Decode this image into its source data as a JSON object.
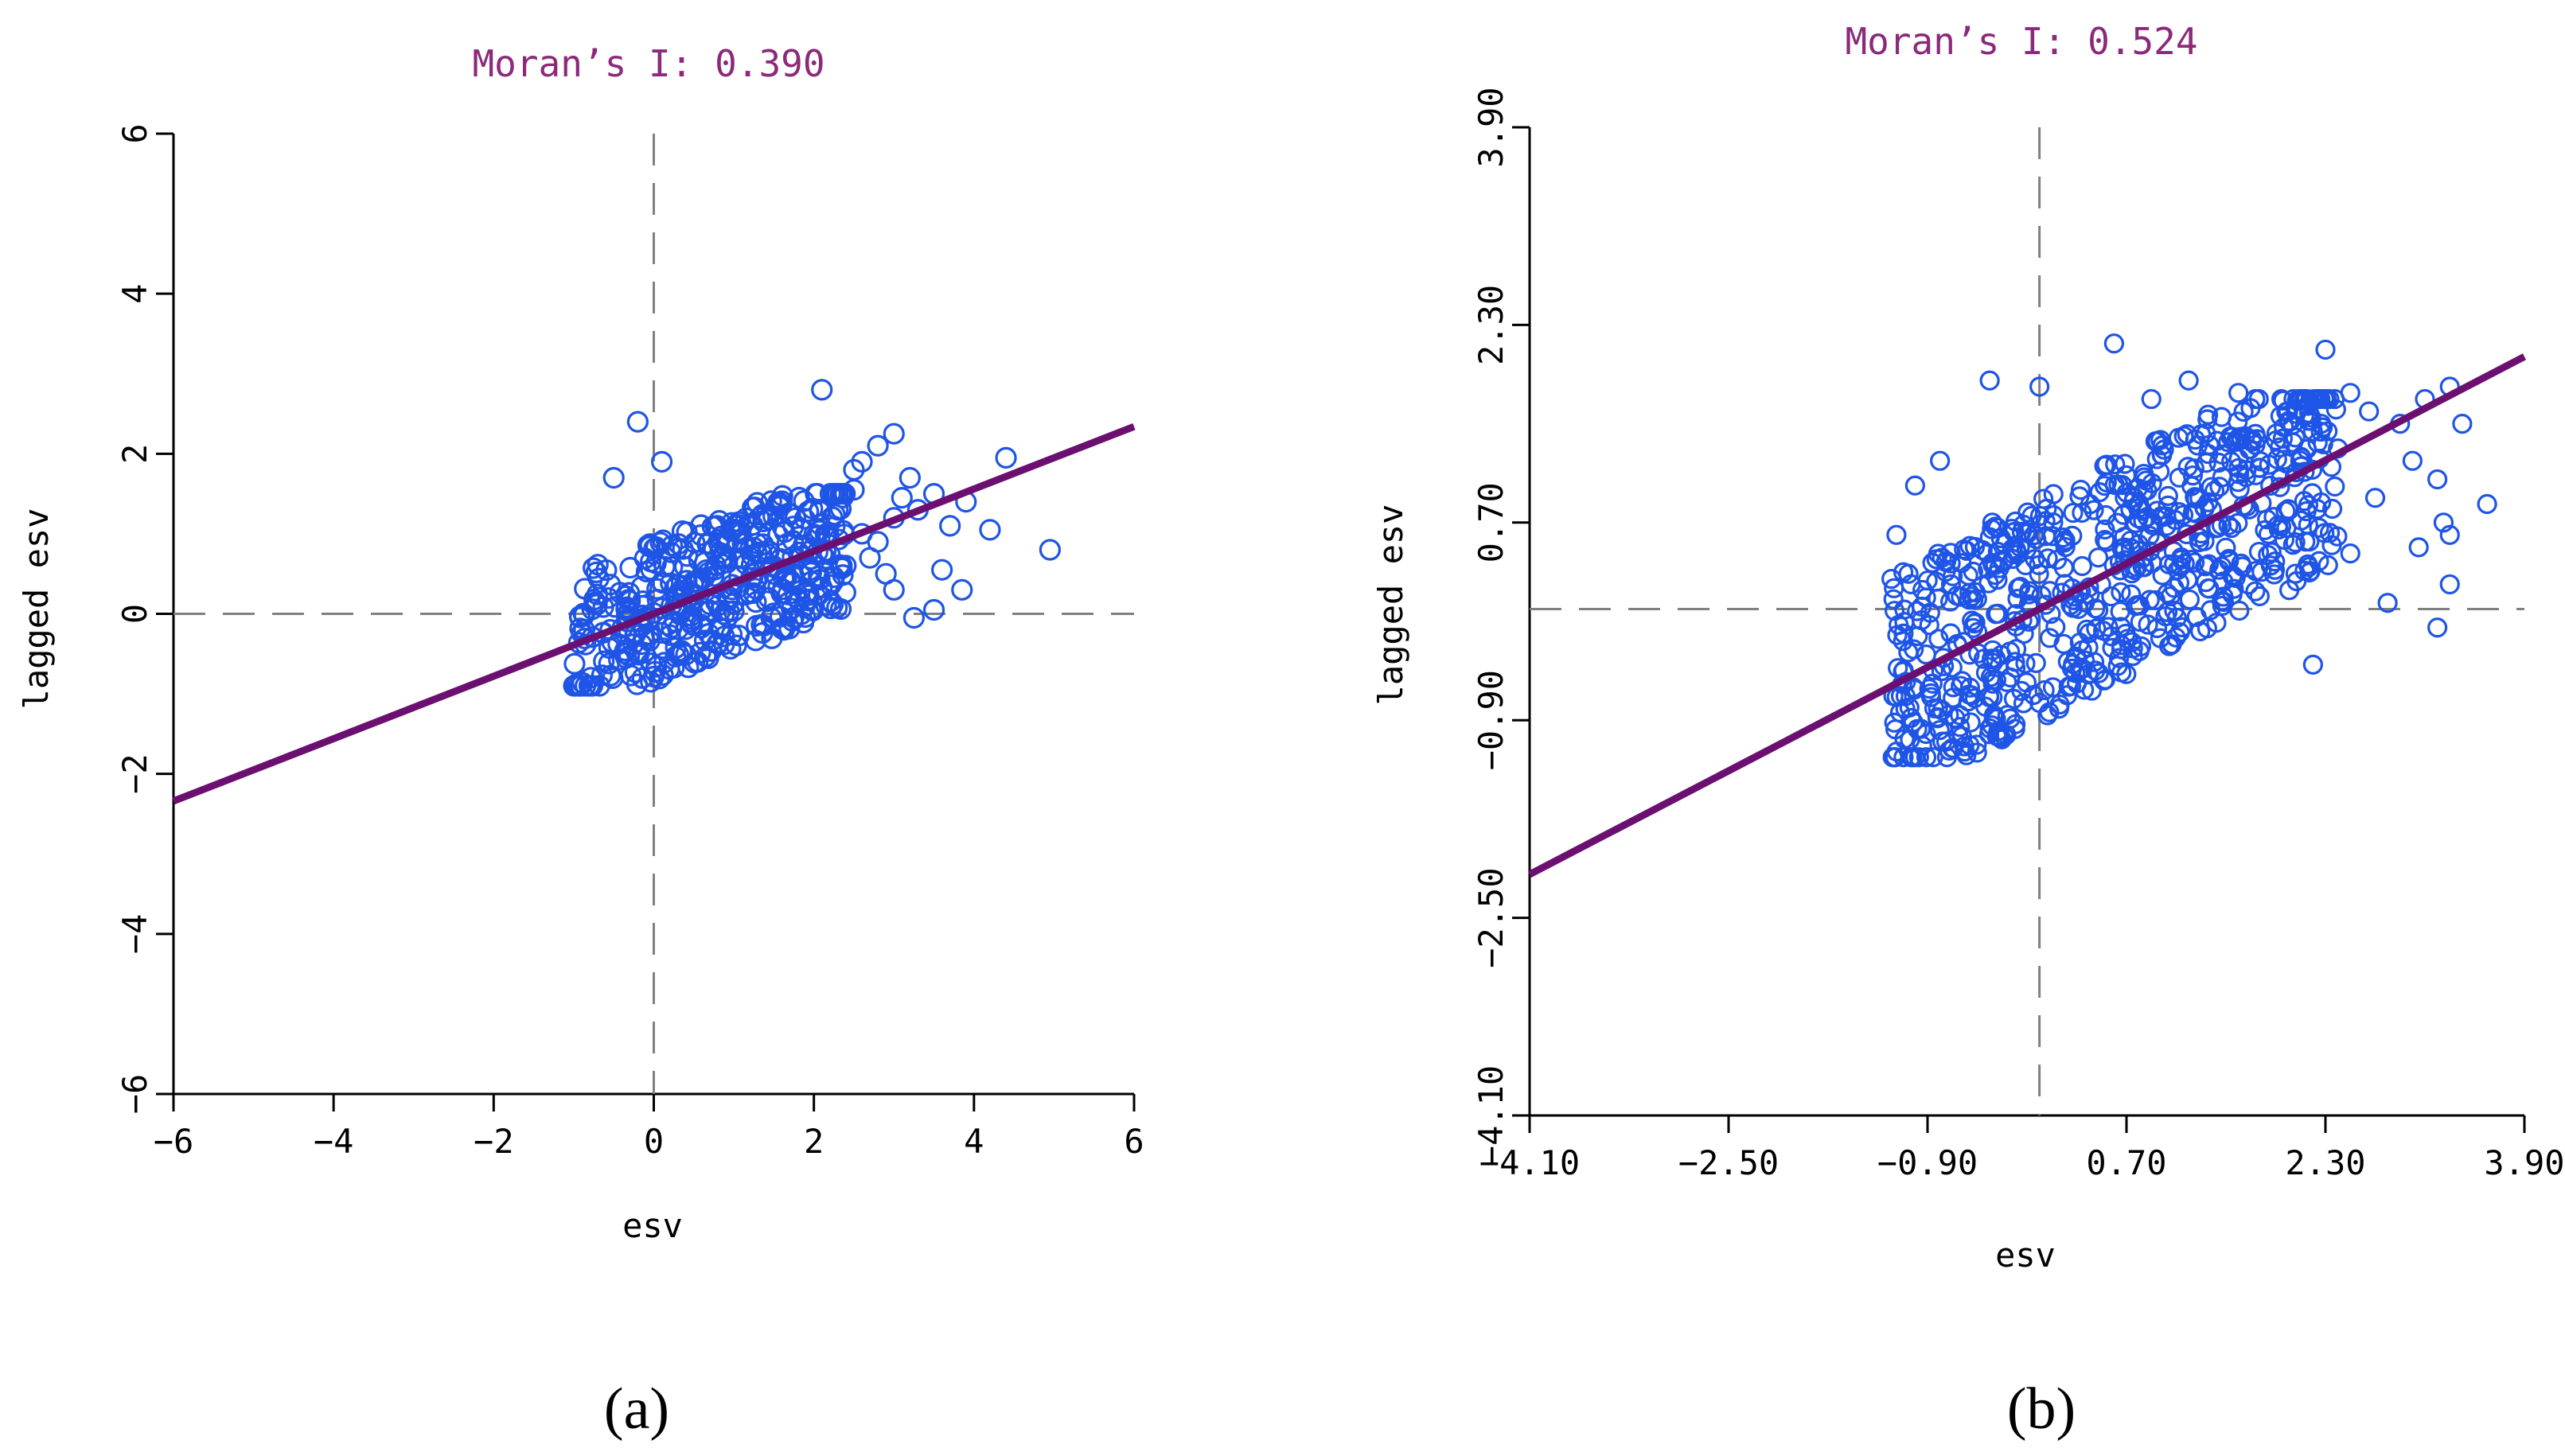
{
  "chart_data": [
    {
      "type": "scatter",
      "panel_label": "(a)",
      "title": "Moran’s I: 0.390",
      "xlabel": "esv",
      "ylabel": "lagged esv",
      "xlim": [
        -6,
        6
      ],
      "ylim": [
        -6,
        6
      ],
      "xticks": [
        "−6",
        "−4",
        "−2",
        "0",
        "2",
        "4",
        "6"
      ],
      "yticks": [
        "−6",
        "−4",
        "−2",
        "0",
        "2",
        "4",
        "6"
      ],
      "xtick_values": [
        -6,
        -4,
        -2,
        0,
        2,
        4,
        6
      ],
      "ytick_values": [
        -6,
        -4,
        -2,
        0,
        2,
        4,
        6
      ],
      "slope": 0.39,
      "reference_lines": {
        "x": 0,
        "y": 0
      },
      "colors": {
        "points": "#1f55e6",
        "line": "#6b1070",
        "title": "#8b2a7a",
        "ref": "#808080"
      },
      "cluster": {
        "x_range": [
          -1.0,
          2.4
        ],
        "y_range": [
          -0.9,
          1.5
        ],
        "count": 420,
        "seed": 11
      },
      "points": [
        [
          2.1,
          2.8
        ],
        [
          -0.2,
          2.4
        ],
        [
          0.1,
          1.9
        ],
        [
          -0.5,
          1.7
        ],
        [
          3.0,
          2.25
        ],
        [
          2.8,
          2.1
        ],
        [
          2.6,
          1.9
        ],
        [
          2.5,
          1.8
        ],
        [
          3.2,
          1.7
        ],
        [
          3.5,
          1.5
        ],
        [
          3.3,
          1.3
        ],
        [
          3.9,
          1.4
        ],
        [
          3.7,
          1.1
        ],
        [
          4.2,
          1.05
        ],
        [
          4.4,
          1.95
        ],
        [
          4.95,
          0.8
        ],
        [
          3.0,
          1.2
        ],
        [
          2.8,
          0.9
        ],
        [
          2.9,
          0.5
        ],
        [
          2.7,
          0.7
        ],
        [
          3.0,
          0.3
        ],
        [
          3.6,
          0.55
        ],
        [
          3.85,
          0.3
        ],
        [
          3.5,
          0.05
        ],
        [
          3.25,
          -0.05
        ],
        [
          3.1,
          1.45
        ],
        [
          2.5,
          1.55
        ],
        [
          2.3,
          1.3
        ],
        [
          2.6,
          1.0
        ],
        [
          2.35,
          0.6
        ]
      ]
    },
    {
      "type": "scatter",
      "panel_label": "(b)",
      "title": "Moran’s I: 0.524",
      "xlabel": "esv",
      "ylabel": "lagged esv",
      "xlim": [
        -4.1,
        3.9
      ],
      "ylim": [
        -4.1,
        3.9
      ],
      "xticks": [
        "−4.10",
        "−2.50",
        "−0.90",
        "0.70",
        "2.30",
        "3.90"
      ],
      "yticks": [
        "−4.10",
        "−2.50",
        "−0.90",
        "0.70",
        "2.30",
        "3.90"
      ],
      "xtick_values": [
        -4.1,
        -2.5,
        -0.9,
        0.7,
        2.3,
        3.9
      ],
      "ytick_values": [
        -4.1,
        -2.5,
        -0.9,
        0.7,
        2.3,
        3.9
      ],
      "slope": 0.524,
      "reference_lines": {
        "x": 0,
        "y": 0
      },
      "colors": {
        "points": "#1f55e6",
        "line": "#6b1070",
        "title": "#8b2a7a",
        "ref": "#808080"
      },
      "cluster": {
        "x_range": [
          -1.2,
          2.4
        ],
        "y_range": [
          -1.2,
          1.7
        ],
        "count": 700,
        "seed": 29
      },
      "points": [
        [
          0.6,
          2.15
        ],
        [
          -0.4,
          1.85
        ],
        [
          0.0,
          1.8
        ],
        [
          2.3,
          2.1
        ],
        [
          2.5,
          1.75
        ],
        [
          2.65,
          1.6
        ],
        [
          2.9,
          1.5
        ],
        [
          3.1,
          1.7
        ],
        [
          3.3,
          1.8
        ],
        [
          3.4,
          1.5
        ],
        [
          3.0,
          1.2
        ],
        [
          3.2,
          1.05
        ],
        [
          3.6,
          0.85
        ],
        [
          3.25,
          0.7
        ],
        [
          3.05,
          0.5
        ],
        [
          2.5,
          0.45
        ],
        [
          2.8,
          0.05
        ],
        [
          3.3,
          0.2
        ],
        [
          3.3,
          0.6
        ],
        [
          3.2,
          -0.15
        ],
        [
          2.2,
          -0.45
        ],
        [
          2.4,
          1.3
        ],
        [
          2.0,
          1.6
        ],
        [
          1.6,
          1.75
        ],
        [
          1.2,
          1.85
        ],
        [
          0.9,
          1.7
        ],
        [
          -1.0,
          1.0
        ],
        [
          -0.8,
          1.2
        ],
        [
          -1.15,
          0.6
        ],
        [
          2.7,
          0.9
        ]
      ]
    }
  ]
}
